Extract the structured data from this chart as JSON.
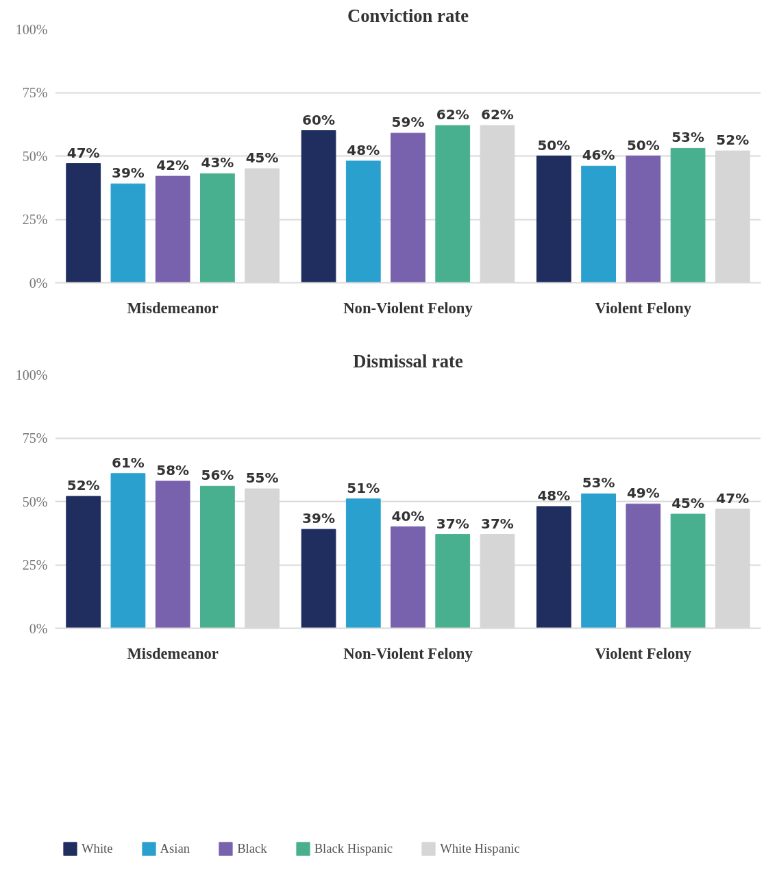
{
  "chart_data": [
    {
      "type": "bar",
      "title": "Conviction rate",
      "categories": [
        "Misdemeanor",
        "Non-Violent Felony",
        "Violent Felony"
      ],
      "series": [
        {
          "color": "#1f2d5f",
          "values": [
            47,
            60,
            50
          ],
          "value_labels": [
            "47%",
            "60%",
            "50%"
          ]
        },
        {
          "color": "#2aa0cf",
          "values": [
            39,
            48,
            46
          ],
          "value_labels": [
            "39%",
            "48%",
            "46%"
          ]
        },
        {
          "color": "#7962ad",
          "values": [
            42,
            59,
            50
          ],
          "value_labels": [
            "42%",
            "59%",
            "50%"
          ]
        },
        {
          "color": "#48b08f",
          "values": [
            43,
            62,
            53
          ],
          "value_labels": [
            "43%",
            "62%",
            "53%"
          ]
        },
        {
          "color": "#d6d6d6",
          "values": [
            45,
            62,
            52
          ],
          "value_labels": [
            "45%",
            "62%",
            "52%"
          ]
        }
      ],
      "ylim": [
        0,
        100
      ],
      "yticks": [
        {
          "value": 0,
          "label": "0%"
        },
        {
          "value": 25,
          "label": "25%"
        },
        {
          "value": 50,
          "label": "50%"
        },
        {
          "value": 75,
          "label": "75%"
        },
        {
          "value": 100,
          "label": "100%"
        }
      ],
      "grid": "y"
    },
    {
      "type": "bar",
      "title": "Dismissal rate",
      "categories": [
        "Misdemeanor",
        "Non-Violent Felony",
        "Violent Felony"
      ],
      "series": [
        {
          "name": "White",
          "color": "#1f2d5f",
          "values": [
            52,
            39,
            48
          ],
          "value_labels": [
            "52%",
            "39%",
            "48%"
          ]
        },
        {
          "name": "Asian",
          "color": "#2aa0cf",
          "values": [
            61,
            51,
            53
          ],
          "value_labels": [
            "61%",
            "51%",
            "53%"
          ]
        },
        {
          "name": "Black",
          "color": "#7962ad",
          "values": [
            58,
            40,
            49
          ],
          "value_labels": [
            "58%",
            "40%",
            "49%"
          ]
        },
        {
          "name": "Black Hispanic",
          "color": "#48b08f",
          "values": [
            56,
            37,
            45
          ],
          "value_labels": [
            "56%",
            "37%",
            "45%"
          ]
        },
        {
          "name": "White Hispanic",
          "color": "#d6d6d6",
          "values": [
            55,
            37,
            47
          ],
          "value_labels": [
            "55%",
            "37%",
            "47%"
          ]
        }
      ],
      "ylim": [
        0,
        100
      ],
      "yticks": [
        {
          "value": 0,
          "label": "0%"
        },
        {
          "value": 25,
          "label": "25%"
        },
        {
          "value": 50,
          "label": "50%"
        },
        {
          "value": 75,
          "label": "75%"
        },
        {
          "value": 100,
          "label": "100%"
        }
      ],
      "grid": "y",
      "legend": "bottom"
    }
  ]
}
